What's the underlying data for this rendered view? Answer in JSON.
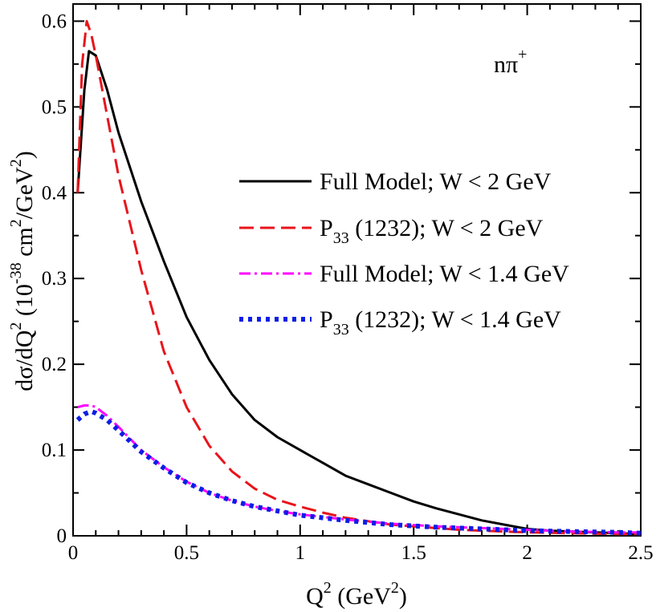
{
  "chart_data": {
    "type": "line",
    "title": "",
    "annotation": {
      "base": "nπ",
      "sup": "+"
    },
    "xlabel": {
      "base": "Q",
      "sup": "2",
      "rest": " (GeV",
      "sup2": "2",
      "tail": ")"
    },
    "ylabel": {
      "part1": "dσ/dQ",
      "sup1": "2",
      "part2": " (10",
      "sup2": "-38",
      "part3": " cm",
      "sup3": "2",
      "part4": "/GeV",
      "sup4": "2",
      "part5": ")"
    },
    "xlim": [
      0,
      2.5
    ],
    "ylim": [
      0,
      0.62
    ],
    "xticks": [
      0,
      0.5,
      1,
      1.5,
      2,
      2.5
    ],
    "xtick_labels": [
      "0",
      "0.5",
      "1",
      "1.5",
      "2",
      "2.5"
    ],
    "yticks": [
      0,
      0.1,
      0.2,
      0.3,
      0.4,
      0.5,
      0.6
    ],
    "ytick_labels": [
      "0",
      "0.1",
      "0.2",
      "0.3",
      "0.4",
      "0.5",
      "0.6"
    ],
    "grid": false,
    "legend_position": "center-right",
    "series": [
      {
        "name": "Full Model; W < 2 GeV",
        "label_parts": {
          "base": "Full Model; W < 2 GeV"
        },
        "color": "#000000",
        "style": "solid",
        "x": [
          0.02,
          0.05,
          0.07,
          0.1,
          0.15,
          0.2,
          0.3,
          0.4,
          0.5,
          0.6,
          0.7,
          0.8,
          0.9,
          1.0,
          1.1,
          1.2,
          1.3,
          1.4,
          1.5,
          1.6,
          1.7,
          1.8,
          1.9,
          2.0,
          2.1,
          2.2,
          2.3,
          2.4,
          2.5
        ],
        "y": [
          0.4,
          0.52,
          0.565,
          0.56,
          0.52,
          0.47,
          0.39,
          0.32,
          0.255,
          0.205,
          0.165,
          0.135,
          0.115,
          0.1,
          0.085,
          0.07,
          0.06,
          0.05,
          0.04,
          0.032,
          0.025,
          0.018,
          0.013,
          0.008,
          0.006,
          0.005,
          0.004,
          0.003,
          0.002
        ]
      },
      {
        "name": "P33 (1232); W < 2 GeV",
        "label_parts": {
          "base": "P",
          "sub": "33",
          "rest": " (1232); W < 2 GeV"
        },
        "color": "#e8141b",
        "style": "dashed",
        "x": [
          0.02,
          0.04,
          0.06,
          0.08,
          0.1,
          0.15,
          0.2,
          0.3,
          0.4,
          0.5,
          0.6,
          0.7,
          0.8,
          0.9,
          1.0,
          1.1,
          1.2,
          1.3,
          1.4,
          1.5,
          1.6,
          1.7,
          1.8,
          1.9,
          2.0,
          2.2,
          2.4,
          2.5
        ],
        "y": [
          0.4,
          0.55,
          0.6,
          0.585,
          0.56,
          0.49,
          0.42,
          0.31,
          0.215,
          0.15,
          0.105,
          0.075,
          0.055,
          0.042,
          0.034,
          0.027,
          0.021,
          0.017,
          0.013,
          0.011,
          0.009,
          0.007,
          0.006,
          0.005,
          0.004,
          0.003,
          0.002,
          0.002
        ]
      },
      {
        "name": "Full Model; W < 1.4 GeV",
        "label_parts": {
          "base": "Full Model; W < 1.4 GeV"
        },
        "color": "#ff00ff",
        "style": "dashdot",
        "x": [
          0.02,
          0.05,
          0.08,
          0.1,
          0.15,
          0.2,
          0.3,
          0.4,
          0.5,
          0.6,
          0.7,
          0.8,
          0.9,
          1.0,
          1.2,
          1.4,
          1.6,
          1.8,
          2.0,
          2.2,
          2.4,
          2.5
        ],
        "y": [
          0.15,
          0.152,
          0.152,
          0.15,
          0.14,
          0.127,
          0.1,
          0.08,
          0.063,
          0.05,
          0.041,
          0.034,
          0.029,
          0.025,
          0.019,
          0.014,
          0.011,
          0.009,
          0.007,
          0.005,
          0.004,
          0.004
        ]
      },
      {
        "name": "P33 (1232); W < 1.4 GeV",
        "label_parts": {
          "base": "P",
          "sub": "33",
          "rest": " (1232); W < 1.4 GeV"
        },
        "color": "#0a1ee6",
        "style": "dotted",
        "x": [
          0.02,
          0.05,
          0.08,
          0.1,
          0.15,
          0.2,
          0.3,
          0.4,
          0.5,
          0.6,
          0.7,
          0.8,
          0.9,
          1.0,
          1.2,
          1.4,
          1.6,
          1.8,
          2.0,
          2.2,
          2.4,
          2.5
        ],
        "y": [
          0.135,
          0.142,
          0.145,
          0.143,
          0.135,
          0.123,
          0.098,
          0.079,
          0.062,
          0.05,
          0.041,
          0.034,
          0.029,
          0.024,
          0.018,
          0.013,
          0.01,
          0.008,
          0.006,
          0.005,
          0.004,
          0.003
        ]
      }
    ]
  }
}
